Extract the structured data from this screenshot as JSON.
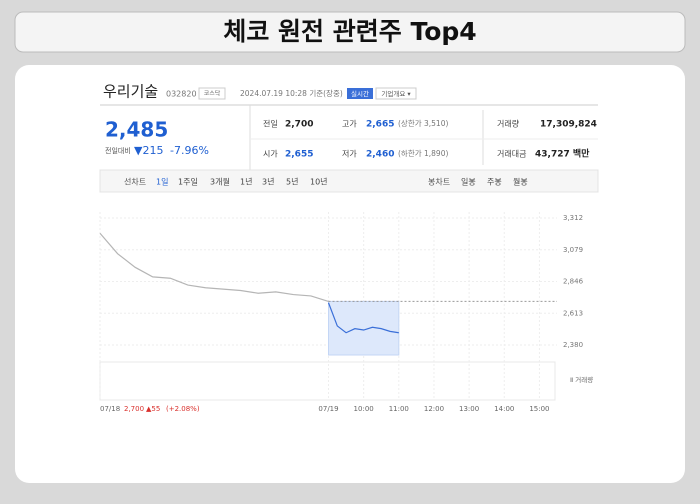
{
  "header": {
    "title": "체코 원전 관련주 Top4"
  },
  "stock": {
    "name": "우리기술",
    "code": "032820",
    "market": "코스닥",
    "timestamp": "2024.07.19 10:28 기준(장중)",
    "realtime": "실시간",
    "company_info": "기업개요 ▾",
    "price": "2,485",
    "change_label": "전일대비",
    "change": "▼215",
    "change_rate": "-7.96%",
    "table": [
      [
        {
          "label": "전일",
          "value": "2,700"
        },
        {
          "label": "고가",
          "value": "2,665",
          "note": "(상한가 3,510)"
        },
        {
          "label": "거래량",
          "value": "17,309,824"
        }
      ],
      [
        {
          "label": "시가",
          "value": "2,655"
        },
        {
          "label": "저가",
          "value": "2,460",
          "note": "(하한가 1,890)"
        },
        {
          "label": "거래대금",
          "value": "43,727 백만"
        }
      ]
    ],
    "prev_day": {
      "close": "2,700",
      "change": "▲55",
      "rate": "(+2.08%)"
    }
  },
  "tabs": {
    "line_label": "선차트",
    "line_periods": [
      "1일",
      "1주일",
      "3개월",
      "1년",
      "3년",
      "5년",
      "10년"
    ],
    "candle_label": "봉차트",
    "candle_periods": [
      "일봉",
      "주봉",
      "월봉"
    ]
  },
  "chart_data": {
    "type": "line",
    "xlim": [
      0,
      13
    ],
    "xticks": [
      {
        "value": 0,
        "label": "07/18"
      },
      {
        "value": 6.5,
        "label": "07/19"
      },
      {
        "value": 7.5,
        "label": "10:00"
      },
      {
        "value": 8.5,
        "label": "11:00"
      },
      {
        "value": 9.5,
        "label": "12:00"
      },
      {
        "value": 10.5,
        "label": "13:00"
      },
      {
        "value": 11.5,
        "label": "14:00"
      },
      {
        "value": 12.5,
        "label": "15:00"
      }
    ],
    "ylim": [
      2380,
      3312
    ],
    "yticks": [
      {
        "value": 2380,
        "label": "2,380"
      },
      {
        "value": 2613,
        "label": "2,613"
      },
      {
        "value": 2846,
        "label": "2,846"
      },
      {
        "value": 3079,
        "label": "3,079"
      },
      {
        "value": 3312,
        "label": "3,312"
      }
    ],
    "grid": true,
    "reference_line": 2700,
    "volume_label": "Ⅱ 거래량",
    "series": [
      {
        "color": "#b5b5b5",
        "x": [
          0,
          0.5,
          1,
          1.5,
          2,
          2.5,
          3,
          3.5,
          4,
          4.5,
          5,
          5.5,
          6,
          6.5
        ],
        "values": [
          3200,
          3050,
          2950,
          2880,
          2870,
          2820,
          2800,
          2790,
          2780,
          2760,
          2770,
          2750,
          2740,
          2700
        ]
      },
      {
        "color": "#3a6fd8",
        "x": [
          6.5,
          6.75,
          7,
          7.25,
          7.5,
          7.75,
          8,
          8.25,
          8.5
        ],
        "values": [
          2690,
          2520,
          2470,
          2500,
          2490,
          2510,
          2500,
          2480,
          2470
        ]
      }
    ]
  }
}
